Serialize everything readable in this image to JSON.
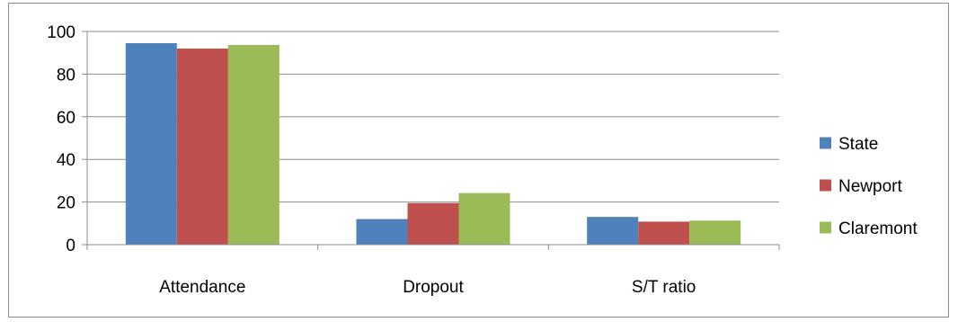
{
  "chart_data": {
    "type": "bar",
    "title": "",
    "xlabel": "",
    "ylabel": "",
    "categories": [
      "Attendance",
      "Dropout",
      "S/T ratio"
    ],
    "series": [
      {
        "name": "State",
        "color": "#4f81bd",
        "values": [
          94.5,
          12,
          13
        ]
      },
      {
        "name": "Newport",
        "color": "#c0504d",
        "values": [
          92,
          19.5,
          10.8
        ]
      },
      {
        "name": "Claremont",
        "color": "#9bbb59",
        "values": [
          93.7,
          24.2,
          11.3
        ]
      }
    ],
    "ylim": [
      0,
      100
    ],
    "yticks": [
      0,
      20,
      40,
      60,
      80,
      100
    ],
    "grid": true,
    "legend_position": "right"
  }
}
